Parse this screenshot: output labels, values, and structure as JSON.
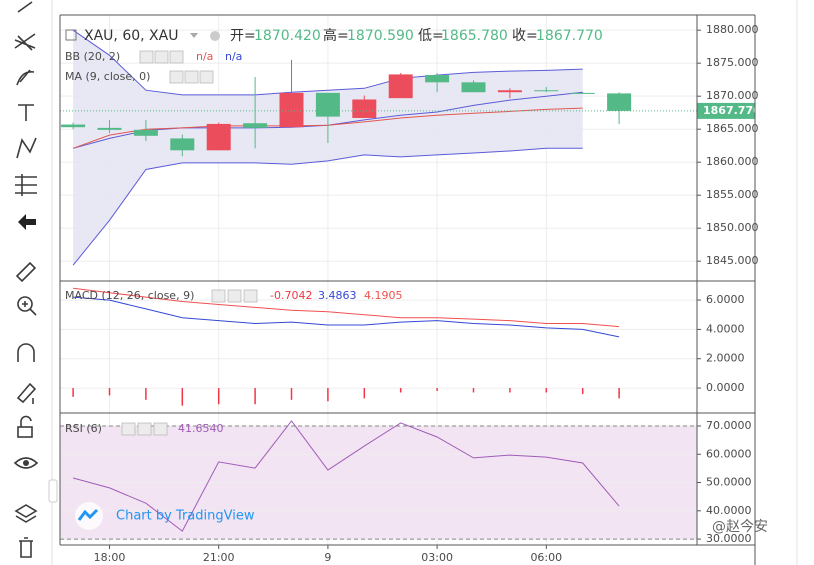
{
  "chart_data": [
    {
      "type": "candlestick",
      "header": {
        "symbol": "XAU, 60, XAU",
        "open_key": "开=",
        "open": "1870.420",
        "high_key": "高=",
        "high": "1870.590",
        "low_key": "低=",
        "low": "1865.780",
        "close_key": "收=",
        "close": "1867.770"
      },
      "indicators": [
        {
          "name": "BB (20, 2)",
          "values": [
            "n/a",
            "n/a"
          ]
        },
        {
          "name": "MA (9, close, 0)"
        }
      ],
      "xlim": [
        -0.36,
        17.14
      ],
      "xticks": [
        {
          "value": 1,
          "label": "18:00"
        },
        {
          "value": 4,
          "label": "21:00"
        },
        {
          "value": 7,
          "label": "9"
        },
        {
          "value": 10,
          "label": "03:00"
        },
        {
          "value": 13,
          "label": "06:00"
        }
      ],
      "ylim": [
        1842.0,
        1882.3
      ],
      "yticks": [
        {
          "value": 1880,
          "label": "1880.000"
        },
        {
          "value": 1875,
          "label": "1875.000"
        },
        {
          "value": 1870,
          "label": "1870.000"
        },
        {
          "value": 1865,
          "label": "1865.000"
        },
        {
          "value": 1860,
          "label": "1860.000"
        },
        {
          "value": 1855,
          "label": "1855.000"
        },
        {
          "value": 1850,
          "label": "1850.000"
        },
        {
          "value": 1845,
          "label": "1845.000"
        }
      ],
      "candles": {
        "open": [
          1865.3,
          1864.9,
          1864.0,
          1861.8,
          1865.8,
          1865.2,
          1870.5,
          1866.9,
          1869.5,
          1873.3,
          1872.1,
          1870.6,
          1870.9,
          1870.8,
          1870.5,
          1870.42
        ],
        "high": [
          1866.0,
          1866.4,
          1866.4,
          1864.2,
          1866.0,
          1872.9,
          1875.5,
          1870.5,
          1870.1,
          1873.5,
          1873.5,
          1872.4,
          1871.2,
          1871.4,
          1870.6,
          1870.59
        ],
        "low": [
          1865.0,
          1864.4,
          1863.2,
          1860.9,
          1861.8,
          1862.1,
          1865.3,
          1862.9,
          1866.7,
          1869.7,
          1870.6,
          1870.6,
          1869.7,
          1870.6,
          1870.4,
          1865.78
        ],
        "close": [
          1865.7,
          1865.2,
          1864.9,
          1863.6,
          1861.8,
          1865.9,
          1865.3,
          1870.5,
          1866.7,
          1869.7,
          1873.2,
          1872.1,
          1870.6,
          1870.9,
          1870.5,
          1867.77
        ],
        "colors": [
          "#53b987",
          "#53b987",
          "#53b987",
          "#53b987",
          "#eb4d5c",
          "#53b987",
          "#eb4d5c",
          "#53b987",
          "#eb4d5c",
          "#eb4d5c",
          "#53b987",
          "#53b987",
          "#eb4d5c",
          "#53b987",
          "#53b987",
          "#53b987"
        ]
      },
      "band_color": "#e4e4f2",
      "series": [
        {
          "color": "#5b5bd9",
          "values": [
            1880.0,
            1876.2,
            1870.9,
            1870.2,
            1870.2,
            1870.2,
            1870.6,
            1870.9,
            1871.2,
            1872.7,
            1873.2,
            1873.6,
            1873.8,
            1873.9,
            1874.1,
            null
          ]
        },
        {
          "color": "#5b5bd9",
          "values": [
            1844.4,
            1851.2,
            1858.9,
            1859.9,
            1859.9,
            1859.9,
            1859.7,
            1860.2,
            1861.1,
            1860.8,
            1861.1,
            1861.4,
            1861.7,
            1862.1,
            1862.1,
            null
          ]
        },
        {
          "color": "#5b5bd9",
          "values": [
            1862.1,
            1863.6,
            1864.8,
            1865.2,
            1865.2,
            1865.2,
            1865.3,
            1865.6,
            1866.4,
            1867.1,
            1867.6,
            1868.6,
            1869.4,
            1870.0,
            1870.6,
            null
          ]
        },
        {
          "color": "#e0574f",
          "values": [
            1862.1,
            1864.1,
            1865.0,
            1865.2,
            1865.5,
            1865.5,
            1865.5,
            1865.6,
            1866.1,
            1866.7,
            1867.1,
            1867.4,
            1867.7,
            1868.0,
            1868.2,
            null
          ]
        }
      ],
      "last_price_color": "#53b987"
    },
    {
      "type": "macd",
      "title": "MACD (12, 26, close, 9)",
      "ylim": [
        -1.7,
        7.3
      ],
      "yticks": [
        {
          "value": 6,
          "label": "6.0000"
        },
        {
          "value": 4,
          "label": "4.0000"
        },
        {
          "value": 2,
          "label": "2.0000"
        },
        {
          "value": 0,
          "label": "0.0000"
        }
      ],
      "histogram": {
        "color": "#f23645",
        "values": [
          -0.6,
          -0.5,
          -0.8,
          -1.2,
          -1.1,
          -1.1,
          -0.8,
          -0.9,
          -0.7,
          -0.3,
          -0.2,
          -0.3,
          -0.3,
          -0.3,
          -0.4,
          -0.7042
        ],
        "value_label": "-0.7042"
      },
      "series": [
        {
          "color": "#3548d6",
          "values": [
            6.2,
            6.0,
            5.4,
            4.8,
            4.6,
            4.4,
            4.5,
            4.3,
            4.3,
            4.5,
            4.6,
            4.4,
            4.3,
            4.1,
            4.0,
            3.4863
          ],
          "value_label": "3.4863"
        },
        {
          "color": "#f0504f",
          "values": [
            6.8,
            6.5,
            6.2,
            5.9,
            5.7,
            5.5,
            5.3,
            5.2,
            5.0,
            4.8,
            4.8,
            4.7,
            4.6,
            4.4,
            4.4,
            4.1905
          ],
          "value_label": "4.1905"
        }
      ]
    },
    {
      "type": "rsi",
      "title": "RSI (6)",
      "ylim": [
        27.9,
        74.6
      ],
      "yticks": [
        {
          "value": 70,
          "label": "70.0000"
        },
        {
          "value": 60,
          "label": "60.0000"
        },
        {
          "value": 50,
          "label": "50.0000"
        },
        {
          "value": 40,
          "label": "40.0000"
        },
        {
          "value": 30,
          "label": "30.0000"
        }
      ],
      "band": [
        30,
        70
      ],
      "band_color": "#f2e4f2",
      "series": [
        {
          "color": "#a05cb8",
          "values": [
            51.6,
            48.1,
            42.7,
            32.8,
            57.3,
            55.1,
            71.8,
            54.4,
            62.9,
            71.1,
            66.1,
            58.7,
            59.7,
            59.0,
            56.9,
            41.654
          ],
          "value_label": "41.6540"
        }
      ]
    }
  ],
  "attribution": "Chart by TradingView",
  "watermark": "@赵今安"
}
